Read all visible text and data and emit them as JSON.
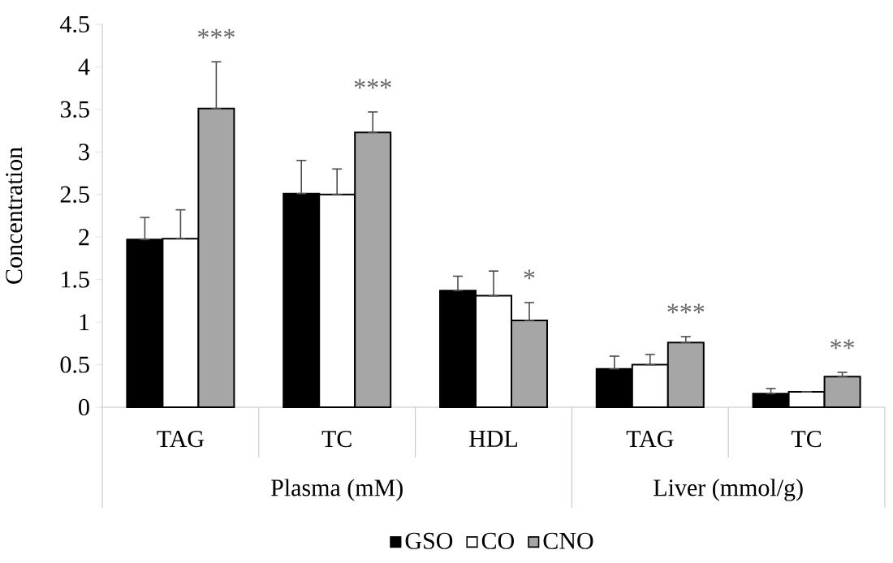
{
  "chart_data": {
    "type": "bar",
    "ylabel": "Concentration",
    "categories": [
      "TAG",
      "TC",
      "HDL",
      "TAG",
      "TC"
    ],
    "series": [
      {
        "name": "GSO",
        "color": "#000000",
        "values": [
          1.97,
          2.51,
          1.37,
          0.45,
          0.16
        ],
        "errors": [
          [
            1.97,
            2.23
          ],
          [
            2.51,
            2.9
          ],
          [
            1.37,
            1.54
          ],
          [
            0.45,
            0.6
          ],
          [
            0.16,
            0.22
          ]
        ]
      },
      {
        "name": "CO",
        "color": "#ffffff",
        "values": [
          1.98,
          2.5,
          1.31,
          0.5,
          0.18
        ],
        "errors": [
          [
            1.98,
            2.32
          ],
          [
            2.5,
            2.8
          ],
          [
            1.31,
            1.6
          ],
          [
            0.5,
            0.62
          ],
          null
        ]
      },
      {
        "name": "CNO",
        "color": "#a6a6a6",
        "values": [
          3.51,
          3.23,
          1.02,
          0.76,
          0.36
        ],
        "errors": [
          [
            3.51,
            4.06
          ],
          [
            3.23,
            3.47
          ],
          [
            1.02,
            1.23
          ],
          [
            0.76,
            0.83
          ],
          [
            0.36,
            0.41
          ]
        ]
      }
    ],
    "ylim": [
      0,
      4.5
    ],
    "yticks": [
      0,
      0.5,
      1,
      1.5,
      2,
      2.5,
      3,
      3.5,
      4,
      4.5
    ],
    "legend": "bottom",
    "annotations": [
      "***",
      "***",
      "*",
      "***",
      "**",
      "Plasma (mM)",
      "Liver (mmol/g)"
    ]
  }
}
